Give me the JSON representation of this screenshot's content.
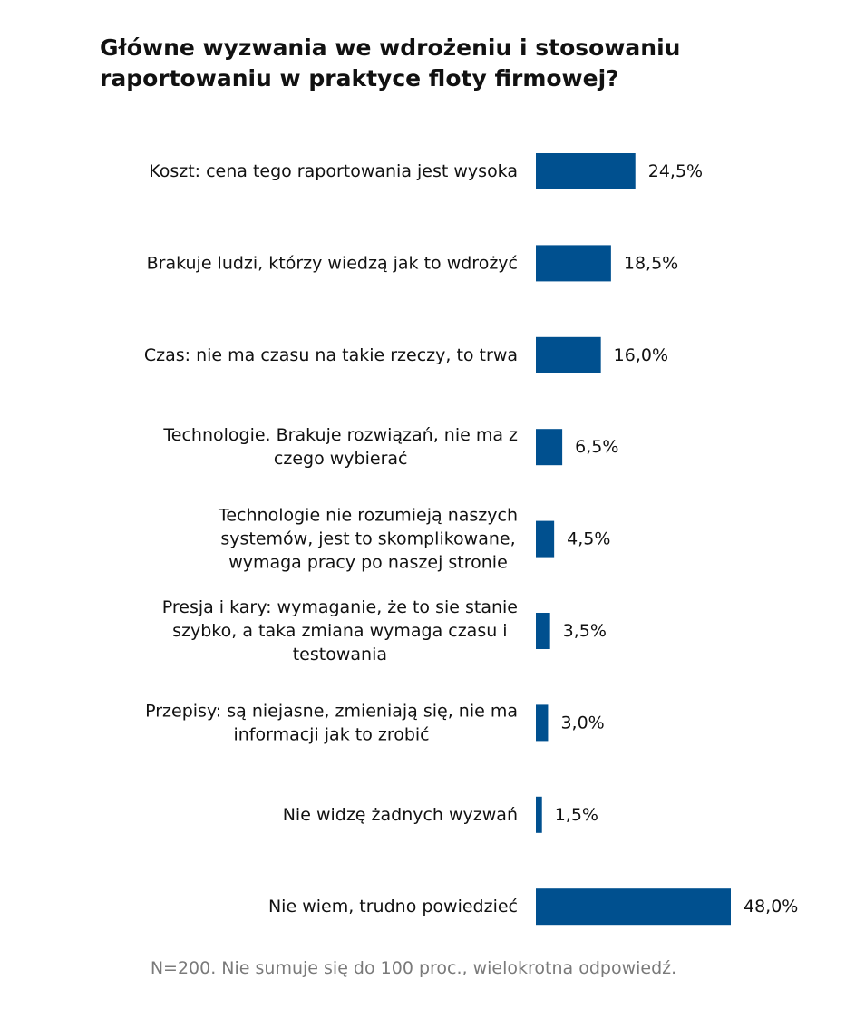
{
  "chart_data": {
    "type": "bar",
    "orientation": "horizontal",
    "title": "Główne wyzwania we wdrożeniu i stosowaniu raportowaniu w praktyce floty firmowej?",
    "categories": [
      [
        "Koszt: cena tego raportowania jest wysoka"
      ],
      [
        "Brakuje ludzi, którzy wiedzą jak to wdrożyć"
      ],
      [
        "Czas: nie ma czasu na takie rzeczy, to trwa"
      ],
      [
        "Technologie. Brakuje rozwiązań, nie ma z",
        "czego wybierać"
      ],
      [
        "Technologie nie rozumieją naszych",
        "systemów, jest to skomplikowane,",
        "wymaga pracy po naszej stronie"
      ],
      [
        "Presja i kary: wymaganie, że to sie stanie",
        "szybko, a taka zmiana wymaga czasu i",
        "testowania"
      ],
      [
        "Przepisy: są niejasne, zmieniają się, nie ma",
        "informacji jak to zrobić"
      ],
      [
        "Nie widzę żadnych wyzwań"
      ],
      [
        "Nie wiem, trudno powiedzieć"
      ]
    ],
    "values": [
      24.5,
      18.5,
      16.0,
      6.5,
      4.5,
      3.5,
      3.0,
      1.5,
      48.0
    ],
    "value_labels": [
      "24,5%",
      "18,5%",
      "16,0%",
      "6,5%",
      "4,5%",
      "3,5%",
      "3,0%",
      "1,5%",
      "48,0%"
    ],
    "unit": "%",
    "xlim": [
      0,
      48
    ],
    "grid": false,
    "legend": "none",
    "bar_color": "#00508f"
  },
  "footnote": "N=200. Nie sumuje się do 100 proc., wielokrotna odpowiedź."
}
